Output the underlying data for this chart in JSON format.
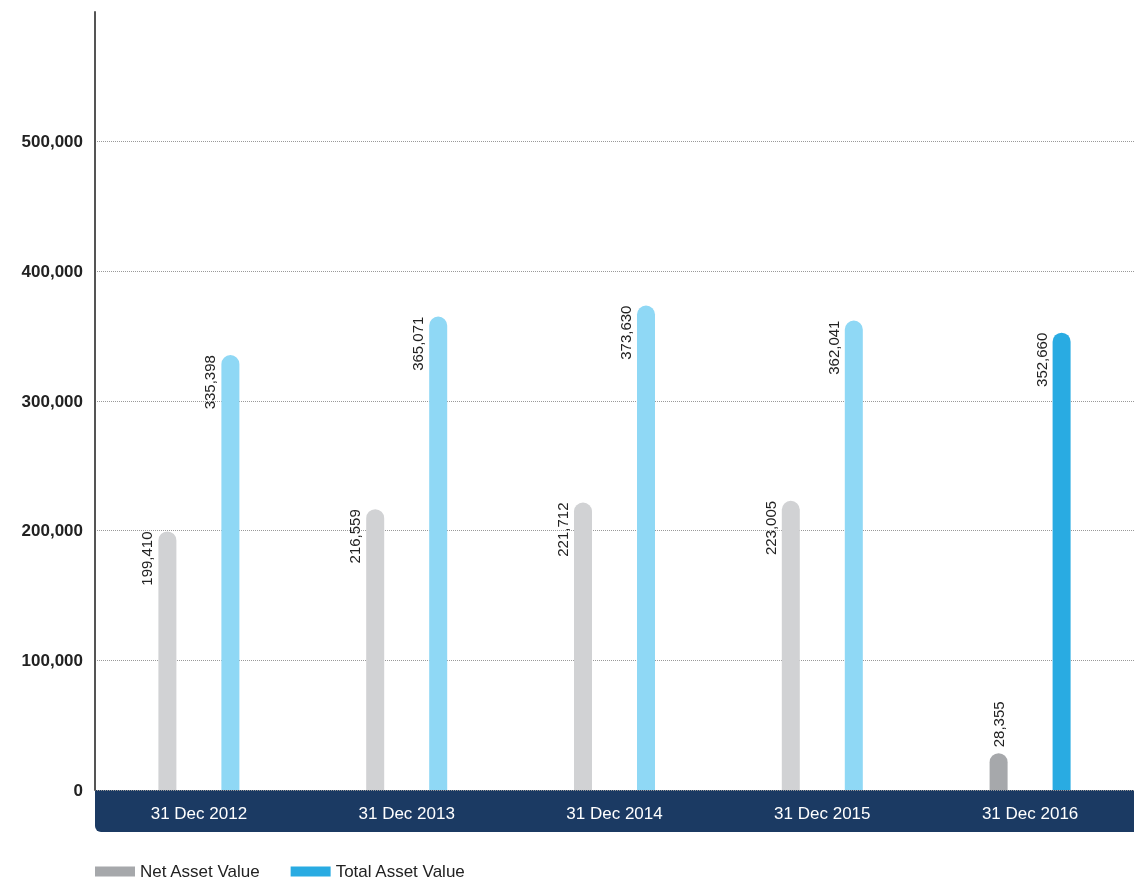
{
  "chart_data": {
    "type": "bar",
    "categories": [
      "31 Dec 2012",
      "31 Dec 2013",
      "31 Dec 2014",
      "31 Dec 2015",
      "31 Dec 2016"
    ],
    "series": [
      {
        "name": "Net Asset Value",
        "color": "#a6a8ab",
        "colors": [
          "#d1d2d4",
          "#d1d2d4",
          "#d1d2d4",
          "#d1d2d4",
          "#a6a8ab"
        ],
        "values": [
          199410,
          216559,
          221712,
          223005,
          28355
        ],
        "value_labels": [
          "199,410",
          "216,559",
          "221,712",
          "223,005",
          "28,355"
        ]
      },
      {
        "name": "Total Asset Value",
        "color": "#29abe2",
        "colors": [
          "#8fd8f5",
          "#8fd8f5",
          "#8fd8f5",
          "#8fd8f5",
          "#29abe2"
        ],
        "values": [
          335398,
          365071,
          373630,
          362041,
          352660
        ],
        "value_labels": [
          "335,398",
          "365,071",
          "373,630",
          "362,041",
          "352,660"
        ]
      }
    ],
    "ylim": [
      0,
      600000
    ],
    "yticks": [
      {
        "value": 0,
        "label": "0"
      },
      {
        "value": 100000,
        "label": "100,000"
      },
      {
        "value": 200000,
        "label": "200,000"
      },
      {
        "value": 300000,
        "label": "300,000"
      },
      {
        "value": 400000,
        "label": "400,000"
      },
      {
        "value": 500000,
        "label": "500,000"
      }
    ],
    "grid": "y",
    "legend": "bottom left"
  }
}
